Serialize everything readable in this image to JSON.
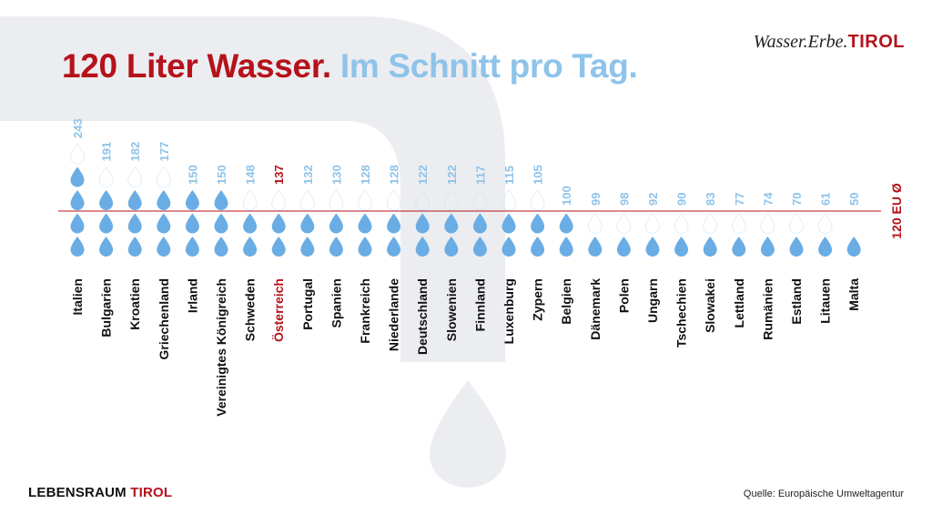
{
  "header": {
    "title_part1": "120 Liter Wasser.",
    "title_part2": "Im Schnitt pro Tag.",
    "brand_part1": "Wasser.Erbe.",
    "brand_part2": "TIROL"
  },
  "footer": {
    "brand_part1": "LEBENSRAUM",
    "brand_part2": "TIROL",
    "source": "Quelle: Europäische Umweltagentur"
  },
  "colors": {
    "accent_red": "#b5121b",
    "drop_blue": "#6aade4",
    "light_blue": "#8ec3ea",
    "label_black": "#111111",
    "background_shape": "#ecedf0"
  },
  "chart_data": {
    "type": "bar",
    "categories": [
      "Italien",
      "Bulgarien",
      "Kroatien",
      "Griechenland",
      "Irland",
      "Vereinigtes Königreich",
      "Schweden",
      "Österreich",
      "Portugal",
      "Spanien",
      "Frankreich",
      "Niederlande",
      "Deutschland",
      "Slowenien",
      "Finnland",
      "Luxenburg",
      "Zypern",
      "Belgien",
      "Dänemark",
      "Polen",
      "Ungarn",
      "Tschechien",
      "Slowakei",
      "Lettland",
      "Rumänien",
      "Estland",
      "Litauen",
      "Malta"
    ],
    "values": [
      243,
      191,
      182,
      177,
      150,
      150,
      148,
      137,
      132,
      130,
      128,
      128,
      122,
      122,
      117,
      115,
      105,
      100,
      99,
      98,
      92,
      90,
      83,
      77,
      74,
      70,
      61,
      50
    ],
    "value_labels": [
      "243",
      "191",
      "182",
      "177",
      "150",
      "150",
      "148",
      "137",
      "132",
      "130",
      "128",
      "128",
      "122",
      "122",
      "117",
      "115",
      "105",
      "100",
      "99",
      "98",
      "92",
      "90",
      "83",
      "77",
      "74",
      "70",
      "61",
      "50"
    ],
    "unit_per_drop": 50,
    "highlight": "Österreich",
    "reference_line": {
      "value": 120,
      "label": "120 EU Ø"
    }
  }
}
